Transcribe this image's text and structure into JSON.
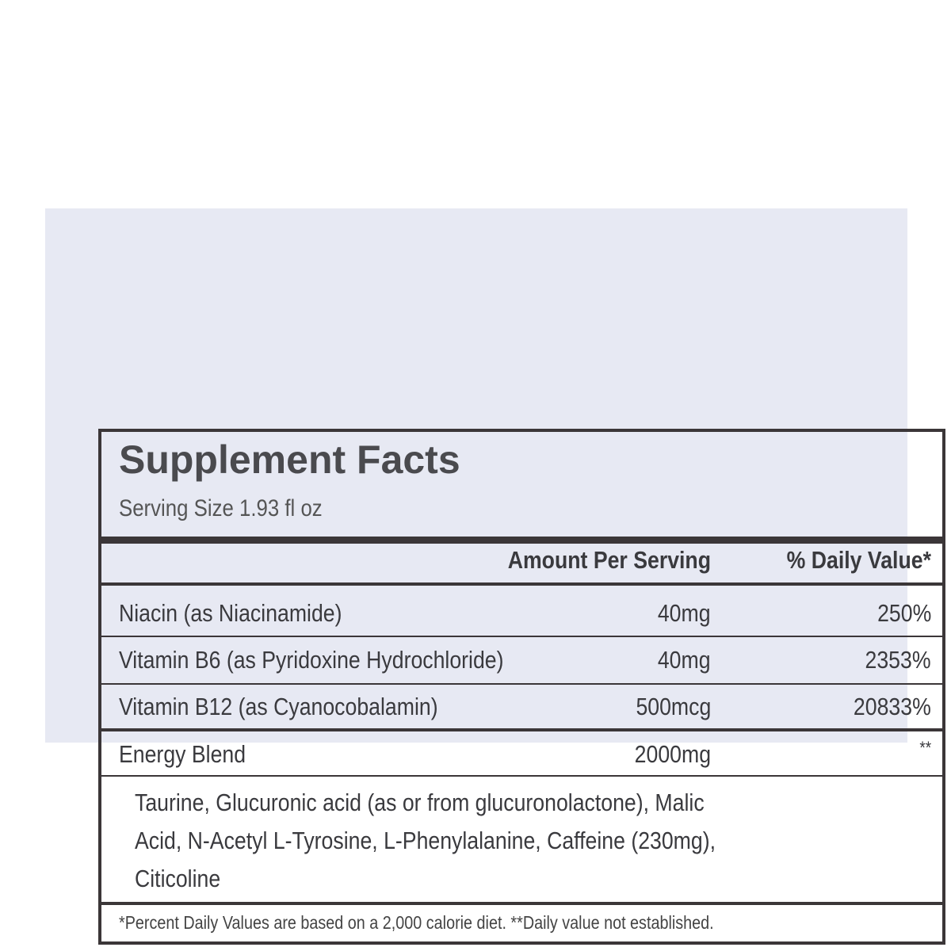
{
  "title": "Supplement Facts",
  "serving_size": "Serving Size 1.93 fl oz",
  "header": {
    "amount": "Amount Per Serving",
    "daily_value": "% Daily Value*"
  },
  "rows": [
    {
      "name": "Niacin (as Niacinamide)",
      "amount": "40mg",
      "dv": "250%"
    },
    {
      "name": "Vitamin B6 (as Pyridoxine Hydrochloride)",
      "amount": "40mg",
      "dv": "2353%"
    },
    {
      "name": "Vitamin B12 (as Cyanocobalamin)",
      "amount": "500mcg",
      "dv": "20833%"
    },
    {
      "name": "Energy Blend",
      "amount": "2000mg",
      "dv": "**"
    }
  ],
  "ingredients": [
    "Taurine, Glucuronic acid (as or from glucuronolactone), Malic",
    "Acid, N-Acetyl L-Tyrosine, L-Phenylalanine, Caffeine (230mg),",
    "Citicoline"
  ],
  "footnote": "*Percent Daily Values are based on a 2,000 calorie diet. **Daily value not established."
}
